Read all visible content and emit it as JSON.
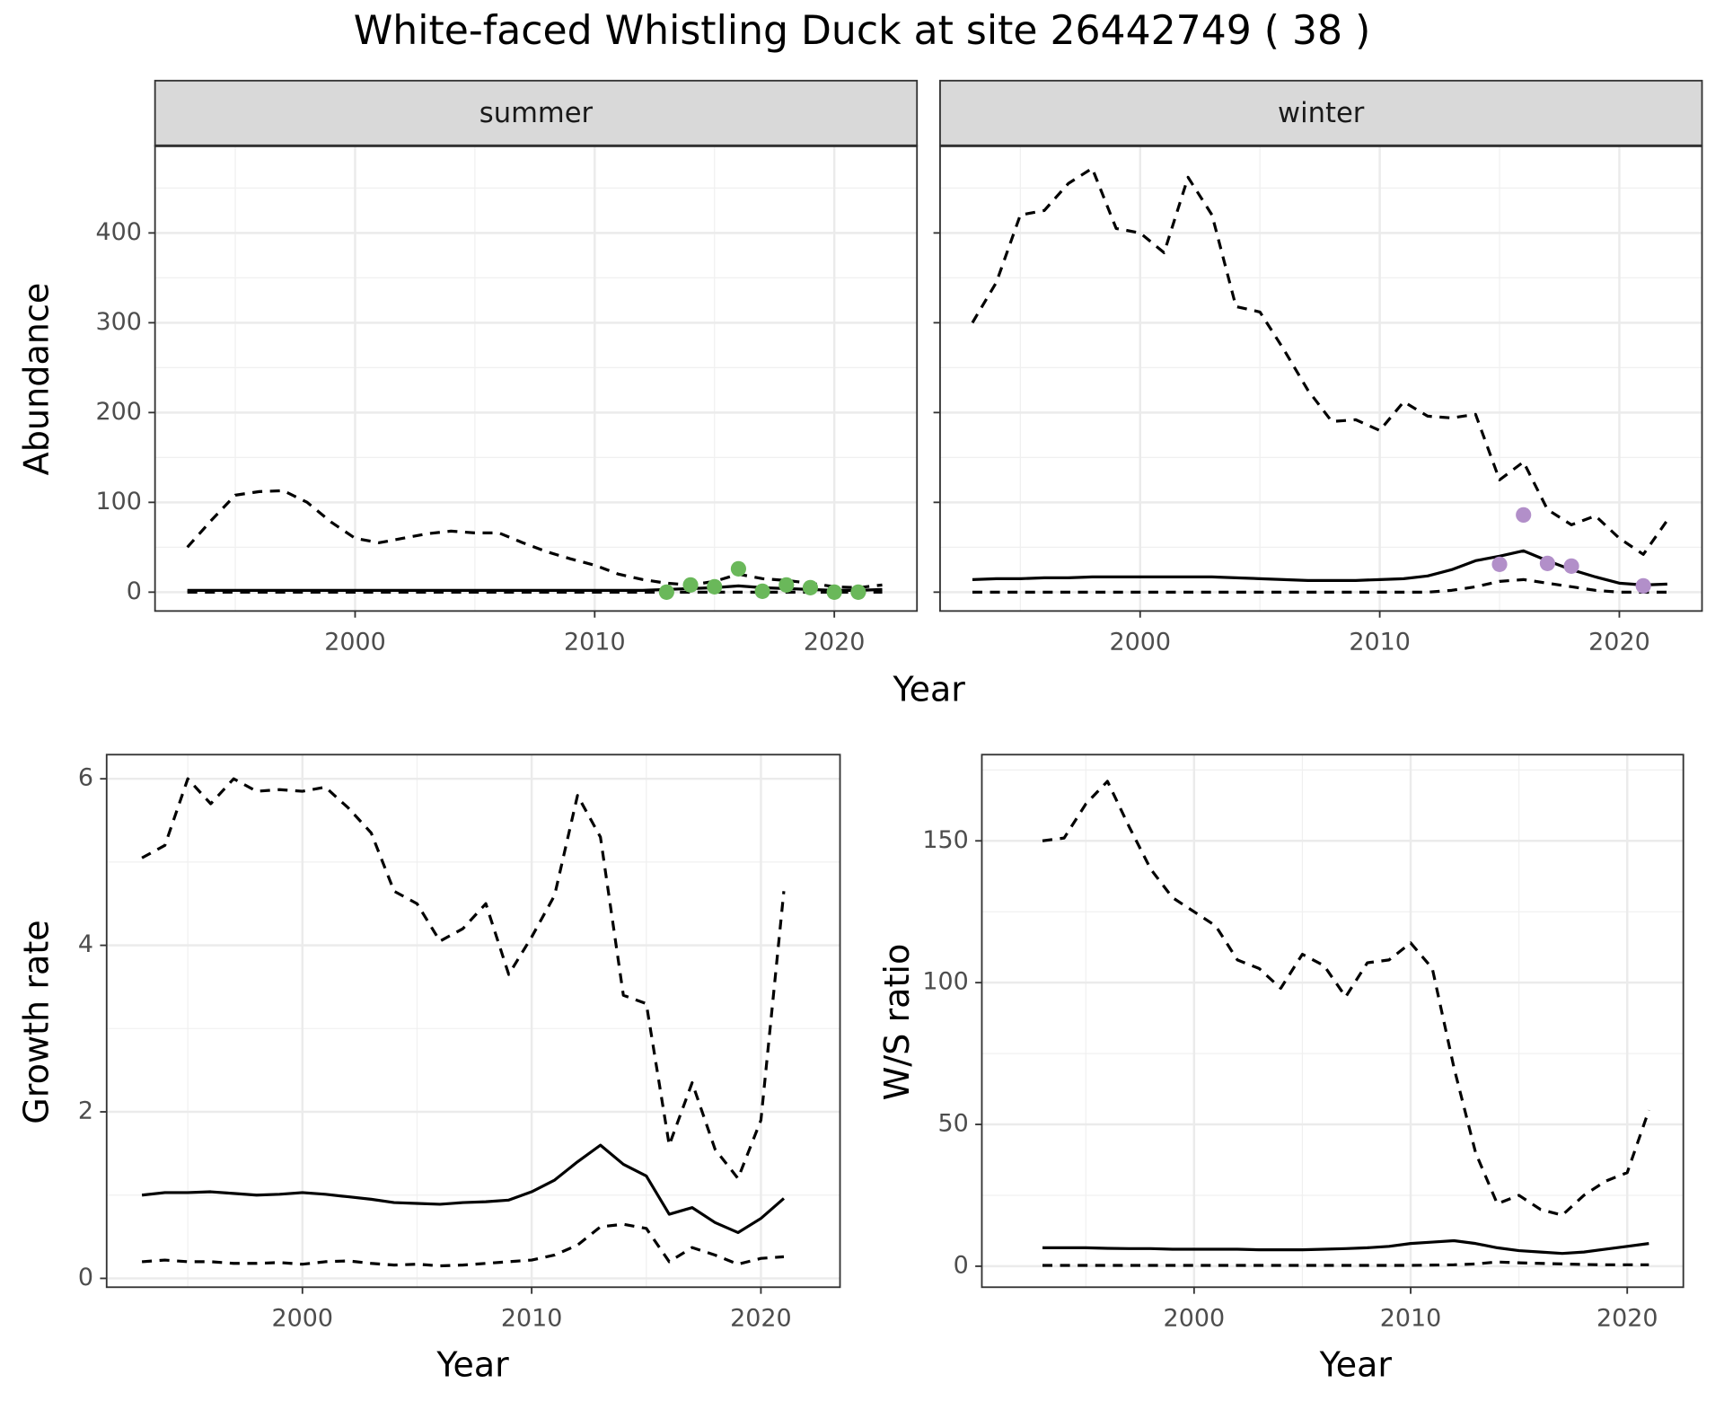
{
  "title": "White-faced Whistling Duck at site 26442749 ( 38 )",
  "chart_data": [
    {
      "type": "line",
      "panel_title": "summer",
      "ylabel": "Abundance",
      "xlabel": "Year",
      "xlim": [
        1991.65,
        2023.45
      ],
      "ylim": [
        -21,
        497
      ],
      "xticks": [
        2000,
        2010,
        2020
      ],
      "yticks": [
        0,
        100,
        200,
        300,
        400
      ],
      "grid": true,
      "show_ytick_labels": true,
      "x": [
        1993,
        1994,
        1995,
        1996,
        1997,
        1998,
        1999,
        2000,
        2001,
        2002,
        2003,
        2004,
        2005,
        2006,
        2007,
        2008,
        2009,
        2010,
        2011,
        2012,
        2013,
        2014,
        2015,
        2016,
        2017,
        2018,
        2019,
        2020,
        2021,
        2022
      ],
      "series": [
        {
          "color": "#000000",
          "dashed": true,
          "values": [
            50,
            80,
            108,
            112,
            113,
            100,
            78,
            60,
            55,
            60,
            65,
            68,
            66,
            66,
            55,
            45,
            37,
            30,
            20,
            14,
            10,
            8,
            12,
            20,
            15,
            13,
            10,
            6,
            5,
            8
          ]
        },
        {
          "color": "#000000",
          "dashed": false,
          "values": [
            2,
            2,
            2,
            2,
            2,
            2,
            2,
            2,
            2,
            2,
            2,
            2,
            2,
            2,
            2,
            2,
            2,
            2,
            2,
            2,
            3,
            4,
            5,
            7,
            5,
            4,
            3,
            2,
            2,
            3
          ]
        },
        {
          "color": "#000000",
          "dashed": true,
          "values": [
            0,
            0,
            0,
            0,
            0,
            0,
            0,
            0,
            0,
            0,
            0,
            0,
            0,
            0,
            0,
            0,
            0,
            0,
            0,
            0,
            0,
            0,
            0,
            0,
            0,
            0,
            0,
            0,
            0,
            0
          ]
        },
        {
          "type": "scatter",
          "color": "#6ab85a",
          "x": [
            2013,
            2014,
            2015,
            2016,
            2017,
            2018,
            2019,
            2020,
            2021
          ],
          "values": [
            0,
            8,
            6,
            26,
            1,
            8,
            5,
            0,
            0
          ]
        }
      ]
    },
    {
      "type": "line",
      "panel_title": "winter",
      "xlim": [
        1991.65,
        2023.45
      ],
      "ylim": [
        -21,
        497
      ],
      "xticks": [
        2000,
        2010,
        2020
      ],
      "yticks": [
        0,
        100,
        200,
        300,
        400
      ],
      "grid": true,
      "show_ytick_labels": false,
      "x": [
        1993,
        1994,
        1995,
        1996,
        1997,
        1998,
        1999,
        2000,
        2001,
        2002,
        2003,
        2004,
        2005,
        2006,
        2007,
        2008,
        2009,
        2010,
        2011,
        2012,
        2013,
        2014,
        2015,
        2016,
        2017,
        2018,
        2019,
        2020,
        2021,
        2022
      ],
      "series": [
        {
          "color": "#000000",
          "dashed": true,
          "values": [
            300,
            345,
            420,
            425,
            455,
            472,
            405,
            400,
            378,
            462,
            420,
            318,
            312,
            270,
            225,
            190,
            192,
            180,
            212,
            196,
            194,
            198,
            125,
            145,
            92,
            75,
            85,
            60,
            42,
            80
          ]
        },
        {
          "color": "#000000",
          "dashed": false,
          "values": [
            14,
            15,
            15,
            16,
            16,
            17,
            17,
            17,
            17,
            17,
            17,
            16,
            15,
            14,
            13,
            13,
            13,
            14,
            15,
            18,
            25,
            35,
            40,
            46,
            35,
            25,
            17,
            10,
            8,
            9
          ]
        },
        {
          "color": "#000000",
          "dashed": true,
          "values": [
            0,
            0,
            0,
            0,
            0,
            0,
            0,
            0,
            0,
            0,
            0,
            0,
            0,
            0,
            0,
            0,
            0,
            0,
            0,
            0,
            2,
            6,
            12,
            14,
            10,
            6,
            2,
            0,
            0,
            0
          ]
        },
        {
          "type": "scatter",
          "color": "#b28fc9",
          "x": [
            2015,
            2016,
            2017,
            2018,
            2021
          ],
          "values": [
            31,
            86,
            32,
            29,
            7
          ]
        }
      ]
    },
    {
      "type": "line",
      "ylabel": "Growth rate",
      "xlabel": "Year",
      "xlim": [
        1991.46,
        2023.45
      ],
      "ylim": [
        -0.106,
        6.29
      ],
      "xticks": [
        2000,
        2010,
        2020
      ],
      "yticks": [
        0,
        2,
        4,
        6
      ],
      "grid": true,
      "show_ytick_labels": true,
      "x": [
        1993,
        1994,
        1995,
        1996,
        1997,
        1998,
        1999,
        2000,
        2001,
        2002,
        2003,
        2004,
        2005,
        2006,
        2007,
        2008,
        2009,
        2010,
        2011,
        2012,
        2013,
        2014,
        2015,
        2016,
        2017,
        2018,
        2019,
        2020,
        2021
      ],
      "series": [
        {
          "color": "#000000",
          "dashed": true,
          "values": [
            5.05,
            5.2,
            6.0,
            5.7,
            6.0,
            5.85,
            5.87,
            5.85,
            5.9,
            5.65,
            5.35,
            4.65,
            4.5,
            4.05,
            4.2,
            4.5,
            3.65,
            4.1,
            4.6,
            5.8,
            5.3,
            3.4,
            3.3,
            1.6,
            2.35,
            1.55,
            1.2,
            1.9,
            4.65
          ]
        },
        {
          "color": "#000000",
          "dashed": false,
          "values": [
            1.0,
            1.03,
            1.03,
            1.04,
            1.02,
            1.0,
            1.01,
            1.03,
            1.01,
            0.98,
            0.95,
            0.91,
            0.9,
            0.89,
            0.91,
            0.92,
            0.94,
            1.04,
            1.18,
            1.4,
            1.6,
            1.37,
            1.23,
            0.77,
            0.85,
            0.67,
            0.55,
            0.72,
            0.96
          ]
        },
        {
          "color": "#000000",
          "dashed": true,
          "values": [
            0.2,
            0.22,
            0.2,
            0.2,
            0.18,
            0.18,
            0.19,
            0.17,
            0.2,
            0.21,
            0.18,
            0.16,
            0.17,
            0.15,
            0.16,
            0.18,
            0.2,
            0.22,
            0.28,
            0.4,
            0.62,
            0.65,
            0.6,
            0.2,
            0.37,
            0.28,
            0.17,
            0.24,
            0.26
          ]
        }
      ]
    },
    {
      "type": "line",
      "ylabel": "W/S ratio",
      "xlabel": "Year",
      "xlim": [
        1990.2,
        2022.59
      ],
      "ylim": [
        -7.4,
        180.4
      ],
      "xticks": [
        2000,
        2010,
        2020
      ],
      "yticks": [
        0,
        50,
        100,
        150
      ],
      "grid": true,
      "show_ytick_labels": true,
      "x": [
        1993,
        1994,
        1995,
        1996,
        1997,
        1998,
        1999,
        2000,
        2001,
        2002,
        2003,
        2004,
        2005,
        2006,
        2007,
        2008,
        2009,
        2010,
        2011,
        2012,
        2013,
        2014,
        2015,
        2016,
        2017,
        2018,
        2019,
        2020,
        2021
      ],
      "series": [
        {
          "color": "#000000",
          "dashed": true,
          "values": [
            150,
            151,
            163,
            171,
            155,
            140,
            130,
            125,
            120,
            108,
            105,
            98,
            110,
            106,
            95,
            107,
            108,
            114,
            105,
            70,
            40,
            22,
            25,
            20,
            18,
            25,
            30,
            33,
            55
          ]
        },
        {
          "color": "#000000",
          "dashed": false,
          "values": [
            6.5,
            6.5,
            6.5,
            6.3,
            6.2,
            6.2,
            6,
            6,
            6,
            6,
            5.8,
            5.8,
            5.8,
            6,
            6.2,
            6.5,
            7,
            8,
            8.5,
            9,
            8,
            6.5,
            5.5,
            5,
            4.5,
            5,
            6,
            7,
            8
          ]
        },
        {
          "color": "#000000",
          "dashed": true,
          "values": [
            0.3,
            0.3,
            0.3,
            0.3,
            0.3,
            0.3,
            0.3,
            0.3,
            0.3,
            0.3,
            0.3,
            0.3,
            0.3,
            0.3,
            0.3,
            0.3,
            0.3,
            0.3,
            0.4,
            0.5,
            0.8,
            1.5,
            1.2,
            1,
            0.8,
            0.6,
            0.5,
            0.5,
            0.5
          ]
        }
      ]
    }
  ]
}
